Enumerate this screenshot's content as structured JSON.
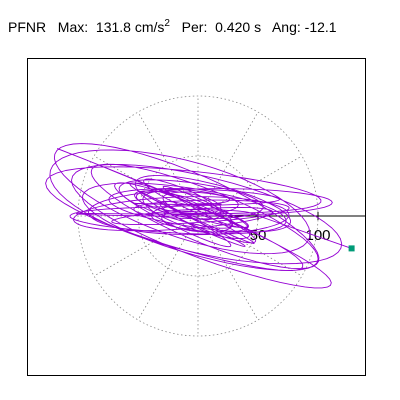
{
  "header": {
    "station": "PFNR",
    "max_label": "Max:",
    "max_value": "131.8",
    "max_unit": "cm/s",
    "max_unit_exp": "2",
    "period_label": "Per:",
    "period_value": "0.420",
    "period_unit": "s",
    "angle_label": "Ang:",
    "angle_value": "-12.1"
  },
  "chart_data": {
    "type": "line",
    "title": "",
    "xlabel": "",
    "ylabel": "",
    "radial_ticks": [
      "50",
      "100"
    ],
    "radial_tick_values": [
      50,
      100
    ],
    "grid": "polar-dotted",
    "grid_rings": [
      50,
      100
    ],
    "grid_spokes_deg": [
      0,
      30,
      60,
      90,
      120,
      150,
      180,
      210,
      240,
      270,
      300,
      330
    ],
    "max_value": 131.8,
    "max_angle_deg": -12.1,
    "series_color": "#9400d3",
    "marker_color": "#009b77",
    "end_point": {
      "x": 128,
      "y": -27
    }
  }
}
